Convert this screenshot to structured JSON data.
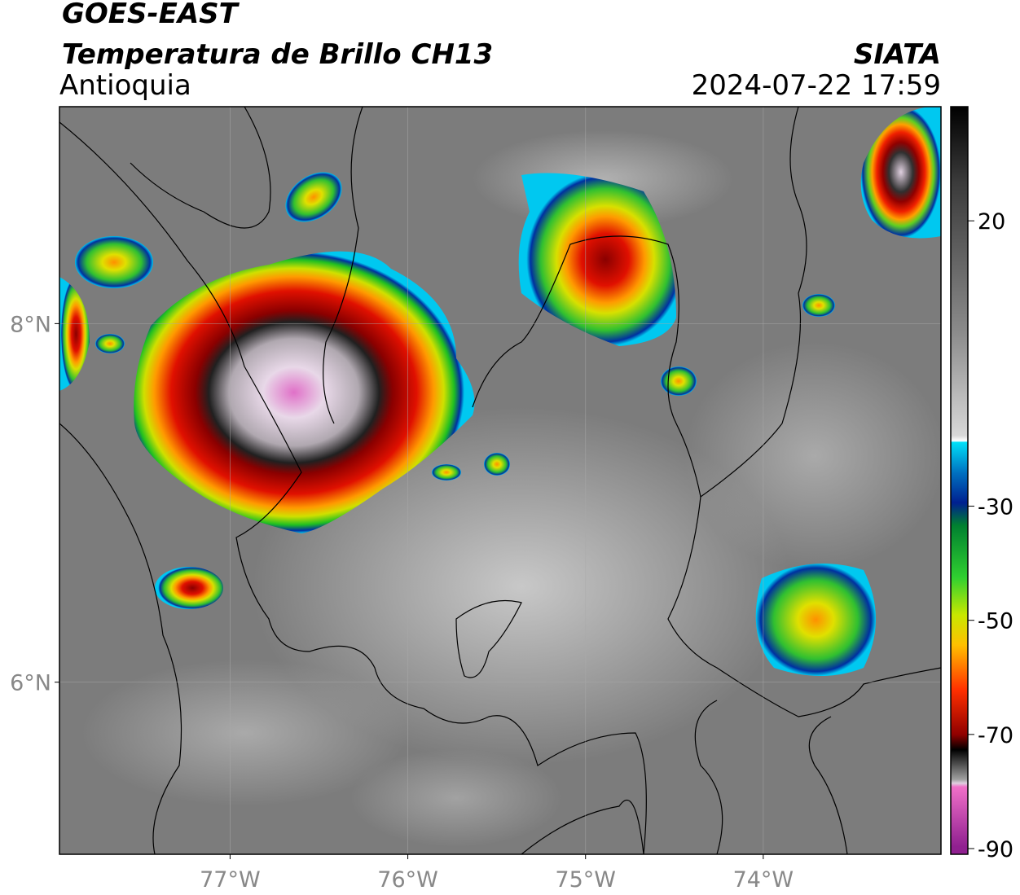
{
  "chart_data": {
    "type": "map",
    "title": "GOES-EAST",
    "subtitle": "Temperatura de Brillo CH13",
    "region": "Antioquia",
    "source": "SIATA",
    "datetime": "2024-07-22 17:59",
    "xlim": [
      -77.96,
      -73.0
    ],
    "ylim": [
      5.04,
      9.21
    ],
    "xticks": [
      {
        "value": -77,
        "label": "77°W"
      },
      {
        "value": -76,
        "label": "76°W"
      },
      {
        "value": -75,
        "label": "75°W"
      },
      {
        "value": -74,
        "label": "74°W"
      }
    ],
    "yticks": [
      {
        "value": 6,
        "label": "6°N"
      },
      {
        "value": 8,
        "label": "8°N"
      }
    ],
    "grid": true,
    "colorbar": {
      "lim": [
        -91,
        40
      ],
      "ticks": [
        20,
        -30,
        -50,
        -70,
        -90
      ]
    }
  }
}
